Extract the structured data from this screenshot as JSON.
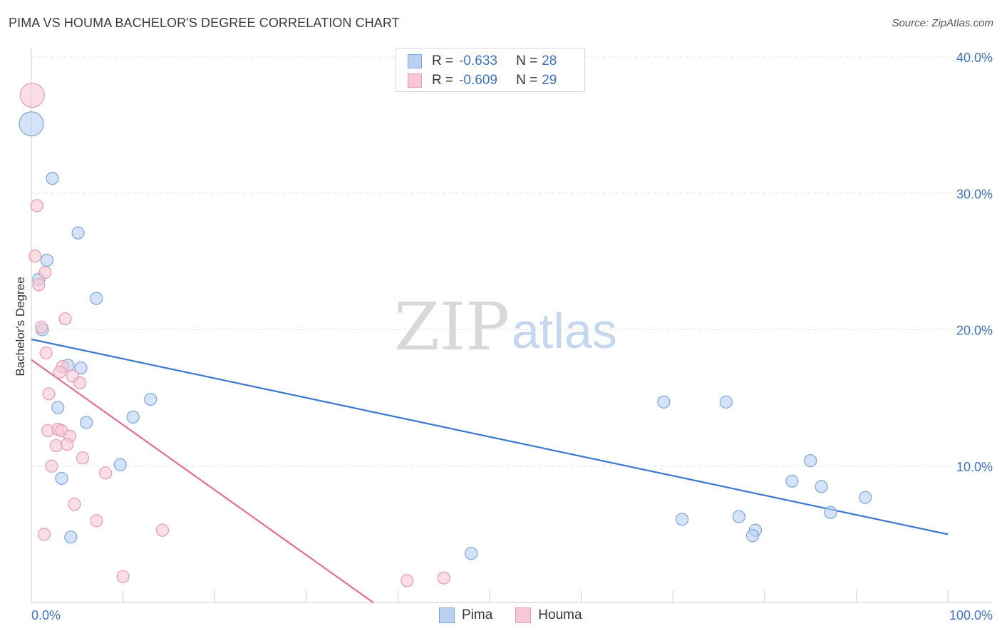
{
  "header": {
    "title": "PIMA VS HOUMA BACHELOR'S DEGREE CORRELATION CHART",
    "source": "Source: ZipAtlas.com"
  },
  "watermark": {
    "zip": "ZIP",
    "atlas": "atlas"
  },
  "colors": {
    "pima_fill": "#b8d1f1",
    "pima_stroke": "#7ea5db",
    "pima_line": "#3a78cf",
    "houma_fill": "#f8c7d5",
    "houma_stroke": "#e99ab2",
    "houma_line": "#e06d95",
    "tick_text": "#3f72c0",
    "grid": "#e5e5e5"
  },
  "stats_legend": {
    "rows": [
      {
        "series": "Pima",
        "r_label": "R =",
        "r_value": "-0.633",
        "n_label": "N =",
        "n_value": "28"
      },
      {
        "series": "Houma",
        "r_label": "R =",
        "r_value": "-0.609",
        "n_label": "N =",
        "n_value": "29"
      }
    ]
  },
  "chart_data": {
    "type": "scatter",
    "title": "PIMA VS HOUMA BACHELOR'S DEGREE CORRELATION CHART",
    "xlabel": "",
    "ylabel": "Bachelor's Degree",
    "xlim": [
      0,
      100
    ],
    "ylim": [
      0,
      40
    ],
    "x_tick_labels": [
      "0.0%",
      "100.0%"
    ],
    "y_ticks": [
      10,
      20,
      30,
      40
    ],
    "y_tick_labels": [
      "10.0%",
      "20.0%",
      "30.0%",
      "40.0%"
    ],
    "grid": true,
    "legend": [
      "Pima",
      "Houma"
    ],
    "series": [
      {
        "name": "Pima",
        "points": [
          {
            "x": 0.0,
            "y": 35.1,
            "size": "large"
          },
          {
            "x": 2.3,
            "y": 31.1
          },
          {
            "x": 5.1,
            "y": 27.1
          },
          {
            "x": 1.7,
            "y": 25.1
          },
          {
            "x": 0.8,
            "y": 23.7
          },
          {
            "x": 7.1,
            "y": 22.3
          },
          {
            "x": 1.2,
            "y": 20.0
          },
          {
            "x": 4.0,
            "y": 17.4
          },
          {
            "x": 5.4,
            "y": 17.2
          },
          {
            "x": 13.0,
            "y": 14.9
          },
          {
            "x": 2.9,
            "y": 14.3
          },
          {
            "x": 11.1,
            "y": 13.6
          },
          {
            "x": 6.0,
            "y": 13.2
          },
          {
            "x": 9.7,
            "y": 10.1
          },
          {
            "x": 3.3,
            "y": 9.1
          },
          {
            "x": 4.3,
            "y": 4.8
          },
          {
            "x": 48.0,
            "y": 3.6
          },
          {
            "x": 69.0,
            "y": 14.7
          },
          {
            "x": 75.8,
            "y": 14.7
          },
          {
            "x": 85.0,
            "y": 10.4
          },
          {
            "x": 83.0,
            "y": 8.9
          },
          {
            "x": 86.2,
            "y": 8.5
          },
          {
            "x": 91.0,
            "y": 7.7
          },
          {
            "x": 87.2,
            "y": 6.6
          },
          {
            "x": 71.0,
            "y": 6.1
          },
          {
            "x": 77.2,
            "y": 6.3
          },
          {
            "x": 79.0,
            "y": 5.3
          },
          {
            "x": 78.7,
            "y": 4.9
          }
        ],
        "trendline": {
          "x": [
            0,
            100
          ],
          "y": [
            19.3,
            5.0
          ]
        }
      },
      {
        "name": "Houma",
        "points": [
          {
            "x": 0.1,
            "y": 37.2,
            "size": "large"
          },
          {
            "x": 0.6,
            "y": 29.1
          },
          {
            "x": 0.4,
            "y": 25.4
          },
          {
            "x": 1.5,
            "y": 24.2
          },
          {
            "x": 0.8,
            "y": 23.3
          },
          {
            "x": 1.1,
            "y": 20.2
          },
          {
            "x": 3.7,
            "y": 20.8
          },
          {
            "x": 1.6,
            "y": 18.3
          },
          {
            "x": 3.4,
            "y": 17.3
          },
          {
            "x": 3.1,
            "y": 16.9
          },
          {
            "x": 4.5,
            "y": 16.6
          },
          {
            "x": 5.3,
            "y": 16.1
          },
          {
            "x": 1.9,
            "y": 15.3
          },
          {
            "x": 1.8,
            "y": 12.6
          },
          {
            "x": 2.9,
            "y": 12.7
          },
          {
            "x": 3.3,
            "y": 12.6
          },
          {
            "x": 4.2,
            "y": 12.2
          },
          {
            "x": 2.7,
            "y": 11.5
          },
          {
            "x": 3.9,
            "y": 11.6
          },
          {
            "x": 5.6,
            "y": 10.6
          },
          {
            "x": 2.2,
            "y": 10.0
          },
          {
            "x": 8.1,
            "y": 9.5
          },
          {
            "x": 4.7,
            "y": 7.2
          },
          {
            "x": 7.1,
            "y": 6.0
          },
          {
            "x": 14.3,
            "y": 5.3
          },
          {
            "x": 10.0,
            "y": 1.9
          },
          {
            "x": 41.0,
            "y": 1.6
          },
          {
            "x": 45.0,
            "y": 1.8
          },
          {
            "x": 1.4,
            "y": 5.0
          }
        ],
        "trendline": {
          "x": [
            0,
            37.3
          ],
          "y": [
            17.8,
            0
          ]
        }
      }
    ]
  },
  "bottom_legend": {
    "items": [
      {
        "label": "Pima"
      },
      {
        "label": "Houma"
      }
    ]
  }
}
